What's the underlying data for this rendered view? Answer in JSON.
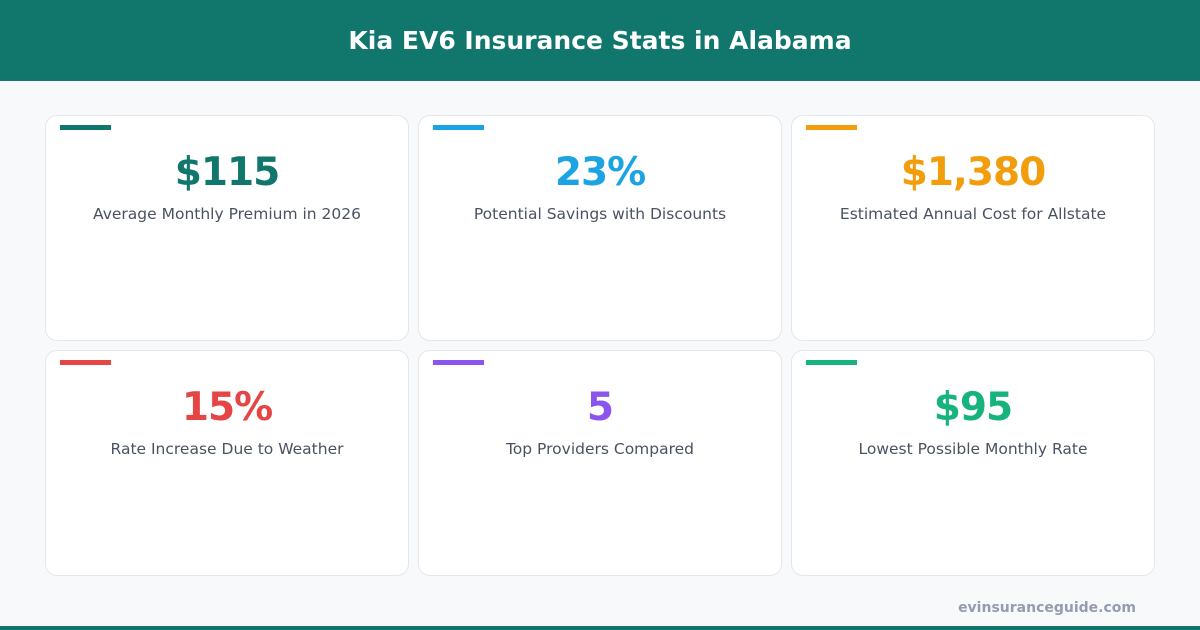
{
  "title": "Kia EV6 Insurance Stats in Alabama",
  "stats": [
    {
      "value": "$115",
      "label": "Average Monthly Premium in 2026",
      "color": "#11776d"
    },
    {
      "value": "23%",
      "label": "Potential Savings with Discounts",
      "color": "#1ca3e3"
    },
    {
      "value": "$1,380",
      "label": "Estimated Annual Cost for Allstate",
      "color": "#f29e0c"
    },
    {
      "value": "15%",
      "label": "Rate Increase Due to Weather",
      "color": "#e54545"
    },
    {
      "value": "5",
      "label": "Top Providers Compared",
      "color": "#8b54ec"
    },
    {
      "value": "$95",
      "label": "Lowest Possible Monthly Rate",
      "color": "#16b47c"
    }
  ],
  "footer": "evinsuranceguide.com"
}
